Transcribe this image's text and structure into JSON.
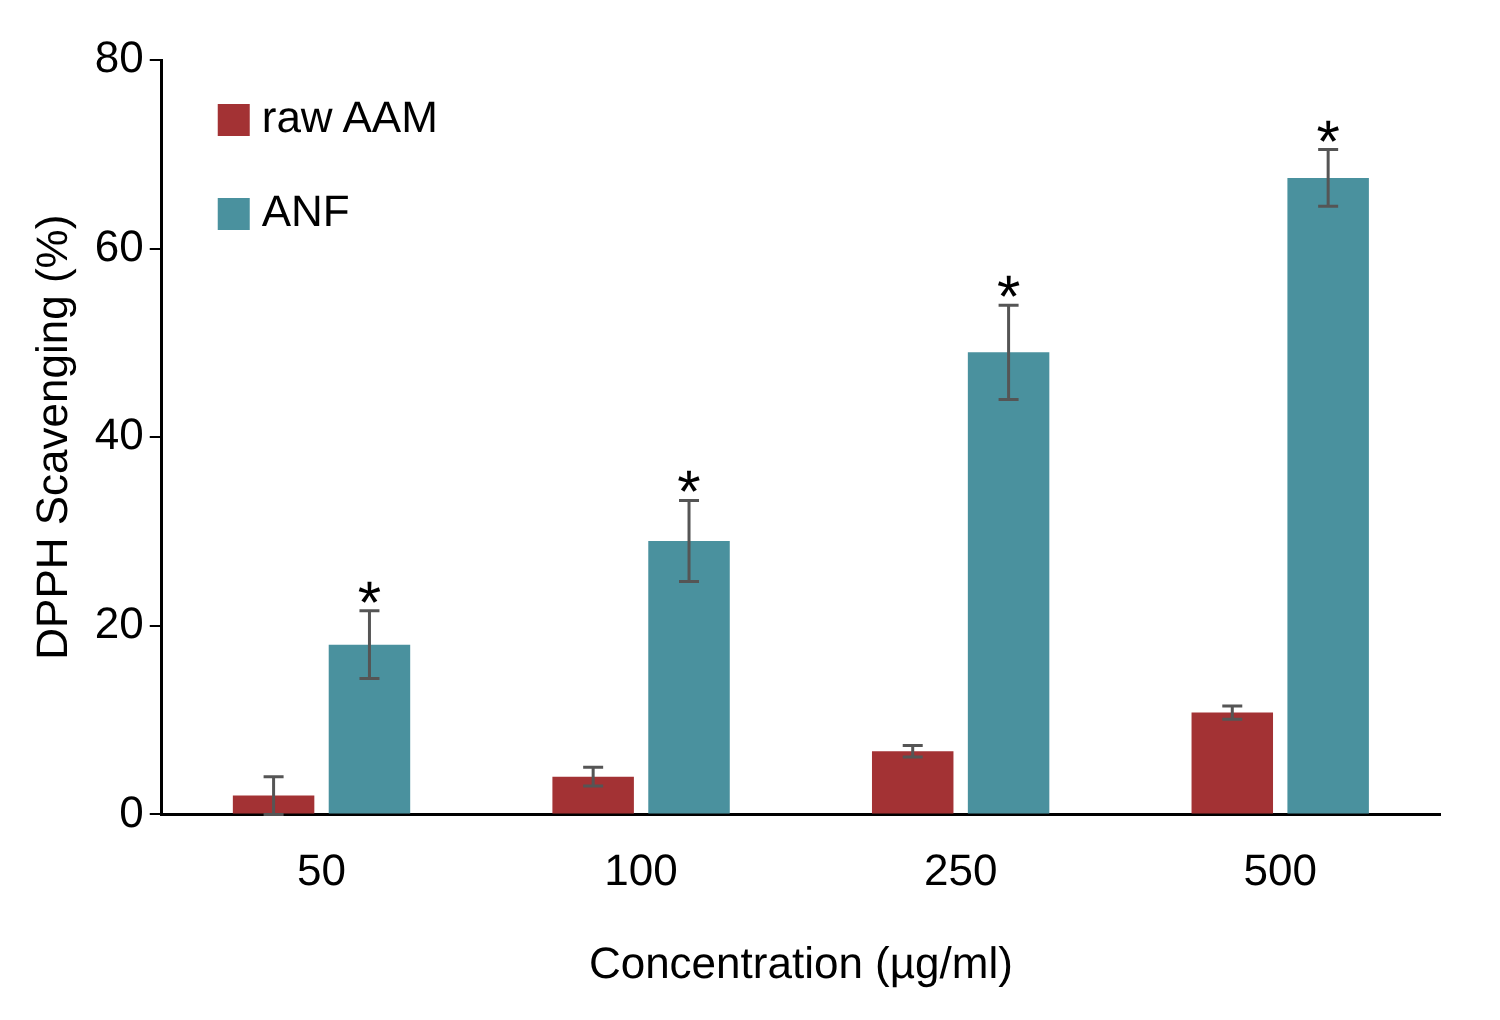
{
  "chart_data": {
    "type": "bar",
    "xlabel": "Concentration (µg/ml)",
    "ylabel": "DPPH Scavenging (%)",
    "categories": [
      "50",
      "100",
      "250",
      "500"
    ],
    "series": [
      {
        "name": "raw AAM",
        "color": "#a33234",
        "values": [
          2,
          4,
          6.7,
          10.8
        ],
        "errors": [
          2,
          1,
          0.6,
          0.7
        ]
      },
      {
        "name": "ANF",
        "color": "#4a919e",
        "values": [
          18,
          29,
          49,
          67.5
        ],
        "errors": [
          3.6,
          4.3,
          5,
          3
        ]
      }
    ],
    "ylim": [
      0,
      80
    ],
    "yticks": [
      0,
      20,
      40,
      60,
      80
    ],
    "grid": false,
    "legend": "top left",
    "annotations": [
      "*",
      "*",
      "*",
      "*"
    ]
  }
}
